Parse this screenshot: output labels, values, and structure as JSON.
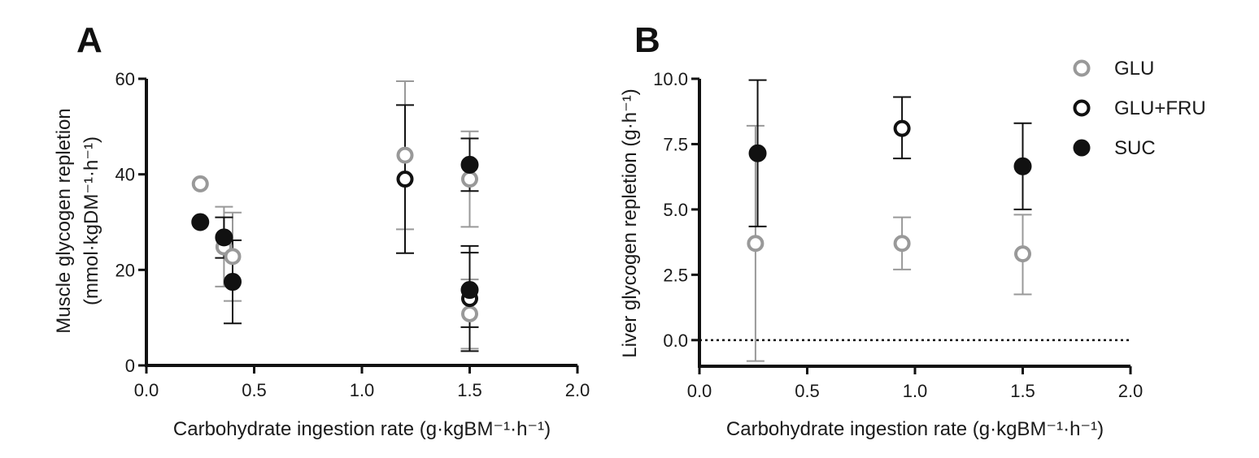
{
  "colors": {
    "GLU": "#999999",
    "GLU+FRU": "#111111",
    "SUC": "#111111",
    "axis": "#111111"
  },
  "legend": {
    "placement": "top-right",
    "items": [
      {
        "label": "GLU",
        "marker": "open-circle",
        "color": "#999999"
      },
      {
        "label": "GLU+FRU",
        "marker": "open-circle",
        "color": "#111111"
      },
      {
        "label": "SUC",
        "marker": "filled-circle",
        "color": "#111111"
      }
    ]
  },
  "chart_data": [
    {
      "panel": "A",
      "type": "scatter",
      "xlabel": "Carbohydrate ingestion rate (g·kgBM⁻¹·h⁻¹)",
      "ylabel_line1": "Muscle glycogen repletion",
      "ylabel_line2": "(mmol·kgDM⁻¹·h⁻¹)",
      "xlim": [
        0,
        2
      ],
      "ylim": [
        0,
        60
      ],
      "xticks": [
        0,
        0.5,
        1,
        1.5,
        2
      ],
      "xtick_labels": [
        "0.0",
        "0.5",
        "1.0",
        "1.5",
        "2.0"
      ],
      "yticks": [
        0,
        20,
        40,
        60
      ],
      "ytick_labels": [
        "0",
        "20",
        "40",
        "60"
      ],
      "series": [
        {
          "name": "GLU",
          "marker": "open",
          "color": "#999999",
          "points": [
            {
              "x": 0.25,
              "y": 38
            },
            {
              "x": 0.36,
              "y": 24.8,
              "lo": 16.5,
              "hi": 33.2
            },
            {
              "x": 0.4,
              "y": 22.8,
              "lo": 13.5,
              "hi": 32
            },
            {
              "x": 1.2,
              "y": 44,
              "lo": 28.5,
              "hi": 59.5
            },
            {
              "x": 1.5,
              "y": 39,
              "lo": 29,
              "hi": 49
            },
            {
              "x": 1.5,
              "y": 10.8,
              "lo": 3.5,
              "hi": 18
            }
          ]
        },
        {
          "name": "GLU+FRU",
          "marker": "open",
          "color": "#111111",
          "points": [
            {
              "x": 1.2,
              "y": 39,
              "lo": 23.5,
              "hi": 54.5
            },
            {
              "x": 1.5,
              "y": 14,
              "lo": 3,
              "hi": 25
            }
          ]
        },
        {
          "name": "SUC",
          "marker": "filled",
          "color": "#111111",
          "points": [
            {
              "x": 0.25,
              "y": 30
            },
            {
              "x": 0.36,
              "y": 26.8,
              "lo": 22.5,
              "hi": 31
            },
            {
              "x": 0.4,
              "y": 17.5,
              "lo": 8.8,
              "hi": 26.2
            },
            {
              "x": 1.5,
              "y": 42,
              "lo": 36.5,
              "hi": 47.5
            },
            {
              "x": 1.5,
              "y": 15.8,
              "lo": 8,
              "hi": 23.6
            }
          ]
        }
      ]
    },
    {
      "panel": "B",
      "type": "scatter",
      "xlabel": "Carbohydrate ingestion rate (g·kgBM⁻¹·h⁻¹)",
      "ylabel": "Liver glycogen repletion (g·h⁻¹)",
      "xlim": [
        0,
        2
      ],
      "ylim": [
        -1,
        10
      ],
      "xticks": [
        0,
        0.5,
        1,
        1.5,
        2
      ],
      "xtick_labels": [
        "0.0",
        "0.5",
        "1.0",
        "1.5",
        "2.0"
      ],
      "yticks": [
        0,
        2.5,
        5,
        7.5,
        10
      ],
      "ytick_labels": [
        "0.0",
        "2.5",
        "5.0",
        "7.5",
        "10.0"
      ],
      "reference_line_y": 0,
      "series": [
        {
          "name": "GLU",
          "marker": "open",
          "color": "#999999",
          "points": [
            {
              "x": 0.26,
              "y": 3.7,
              "lo": -0.8,
              "hi": 8.2
            },
            {
              "x": 0.94,
              "y": 3.7,
              "lo": 2.7,
              "hi": 4.7
            },
            {
              "x": 1.5,
              "y": 3.3,
              "lo": 1.75,
              "hi": 4.8
            }
          ]
        },
        {
          "name": "GLU+FRU",
          "marker": "open",
          "color": "#111111",
          "points": [
            {
              "x": 0.94,
              "y": 8.1,
              "lo": 6.95,
              "hi": 9.3
            }
          ]
        },
        {
          "name": "SUC",
          "marker": "filled",
          "color": "#111111",
          "points": [
            {
              "x": 0.27,
              "y": 7.15,
              "lo": 4.35,
              "hi": 9.95
            },
            {
              "x": 1.5,
              "y": 6.65,
              "lo": 5,
              "hi": 8.3
            }
          ]
        }
      ]
    }
  ]
}
